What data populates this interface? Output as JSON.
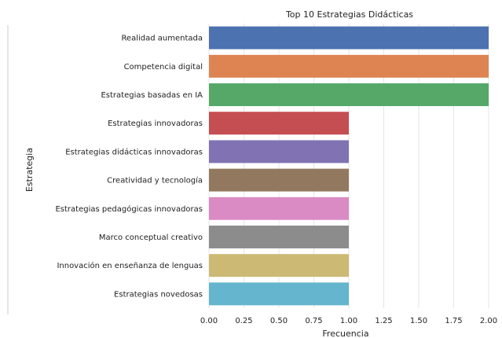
{
  "chart_data": {
    "type": "bar",
    "orientation": "horizontal",
    "title": "Top 10 Estrategias Didácticas",
    "xlabel": "Frecuencia",
    "ylabel": "Estrategia",
    "xlim": [
      0,
      2.0
    ],
    "xticks": [
      "0.00",
      "0.25",
      "0.50",
      "0.75",
      "1.00",
      "1.25",
      "1.50",
      "1.75",
      "2.00"
    ],
    "grid": "vertical",
    "categories": [
      "Realidad aumentada",
      "Competencia digital",
      "Estrategias basadas en IA",
      "Estrategias innovadoras",
      "Estrategias didácticas innovadoras",
      "Creatividad y tecnología",
      "Estrategias pedagógicas innovadoras",
      "Marco conceptual creativo",
      "Innovación en enseñanza de lenguas",
      "Estrategias novedosas"
    ],
    "values": [
      2,
      2,
      2,
      1,
      1,
      1,
      1,
      1,
      1,
      1
    ],
    "colors": [
      "#4c72b0",
      "#dd8452",
      "#55a868",
      "#c44e52",
      "#8172b3",
      "#937860",
      "#da8bc3",
      "#8c8c8c",
      "#ccb974",
      "#64b5cd"
    ]
  }
}
